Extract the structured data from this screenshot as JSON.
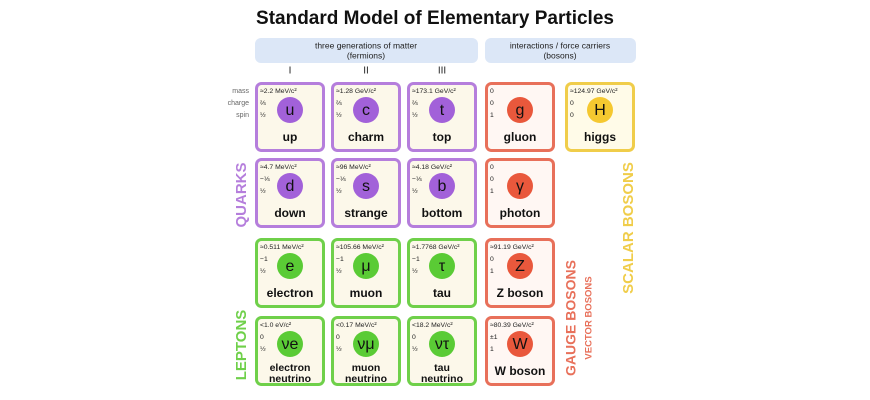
{
  "header": {
    "title": "Standard Model of Elementary Particles"
  },
  "groups": [
    {
      "label": "three generations of matter",
      "sublabel": "(fermions)"
    },
    {
      "label": "interactions / force carriers",
      "sublabel": "(bosons)"
    }
  ],
  "generations": [
    "I",
    "II",
    "III"
  ],
  "property_labels": [
    "mass",
    "charge",
    "spin"
  ],
  "rows": [
    [
      {
        "mass": "≈2.2 MeV/c²",
        "charge": "⅔",
        "spin": "½",
        "symbol": "u",
        "name": [
          "up"
        ]
      },
      {
        "mass": "≈1.28 GeV/c²",
        "charge": "⅔",
        "spin": "½",
        "symbol": "c",
        "name": [
          "charm"
        ]
      },
      {
        "mass": "≈173.1 GeV/c²",
        "charge": "⅔",
        "spin": "½",
        "symbol": "t",
        "name": [
          "top"
        ]
      },
      {
        "mass": "0",
        "charge": "0",
        "spin": "1",
        "symbol": "g",
        "name": [
          "gluon"
        ]
      },
      {
        "mass": "≈124.97 GeV/c²",
        "charge": "0",
        "spin": "0",
        "symbol": "H",
        "name": [
          "higgs"
        ]
      }
    ],
    [
      {
        "mass": "≈4.7 MeV/c²",
        "charge": "−⅓",
        "spin": "½",
        "symbol": "d",
        "name": [
          "down"
        ]
      },
      {
        "mass": "≈96 MeV/c²",
        "charge": "−⅓",
        "spin": "½",
        "symbol": "s",
        "name": [
          "strange"
        ]
      },
      {
        "mass": "≈4.18 GeV/c²",
        "charge": "−⅓",
        "spin": "½",
        "symbol": "b",
        "name": [
          "bottom"
        ]
      },
      {
        "mass": "0",
        "charge": "0",
        "spin": "1",
        "symbol": "γ",
        "name": [
          "photon"
        ]
      }
    ],
    [
      {
        "mass": "≈0.511 MeV/c²",
        "charge": "−1",
        "spin": "½",
        "symbol": "e",
        "name": [
          "electron"
        ]
      },
      {
        "mass": "≈105.66 MeV/c²",
        "charge": "−1",
        "spin": "½",
        "symbol": "μ",
        "name": [
          "muon"
        ]
      },
      {
        "mass": "≈1.7768 GeV/c²",
        "charge": "−1",
        "spin": "½",
        "symbol": "τ",
        "name": [
          "tau"
        ]
      },
      {
        "mass": "≈91.19 GeV/c²",
        "charge": "0",
        "spin": "1",
        "symbol": "Z",
        "name": [
          "Z boson"
        ]
      }
    ],
    [
      {
        "mass": "<1.0 eV/c²",
        "charge": "0",
        "spin": "½",
        "symbol": "νe",
        "name": [
          "electron",
          "neutrino"
        ]
      },
      {
        "mass": "<0.17 MeV/c²",
        "charge": "0",
        "spin": "½",
        "symbol": "νμ",
        "name": [
          "muon",
          "neutrino"
        ]
      },
      {
        "mass": "<18.2 MeV/c²",
        "charge": "0",
        "spin": "½",
        "symbol": "ντ",
        "name": [
          "tau",
          "neutrino"
        ]
      },
      {
        "mass": "≈80.39 GeV/c²",
        "charge": "±1",
        "spin": "1",
        "symbol": "W",
        "name": [
          "W boson"
        ]
      }
    ]
  ],
  "side_labels": {
    "quarks": "QUARKS",
    "leptons": "LEPTONS",
    "gauge": "GAUGE BOSONS",
    "vector": "VECTOR BOSONS",
    "scalar": "SCALAR BOSONS"
  }
}
